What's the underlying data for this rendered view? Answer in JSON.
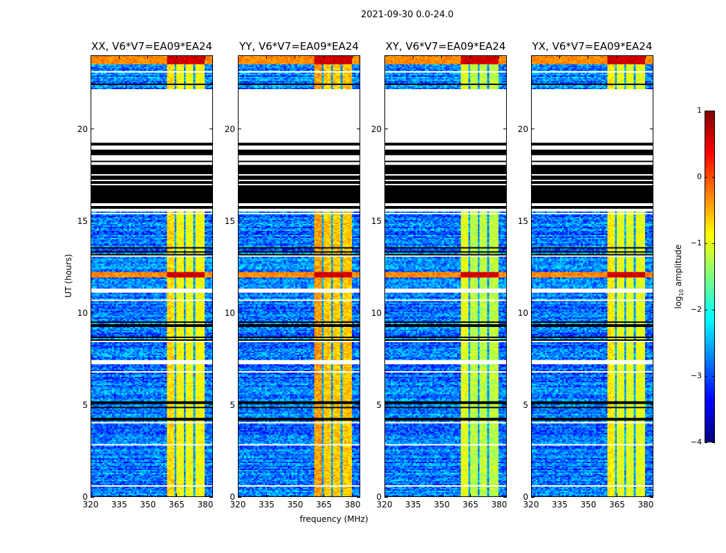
{
  "chart_data": {
    "type": "heatmap",
    "title": "2021-09-30 0.0-24.0",
    "xlabel": "frequency (MHz)",
    "ylabel": "UT (hours)",
    "xlim": [
      320,
      384
    ],
    "ylim": [
      0,
      24
    ],
    "xticks": [
      320,
      335,
      350,
      365,
      380
    ],
    "yticks": [
      0,
      5,
      10,
      15,
      20
    ],
    "panels": [
      {
        "title": "XX, V6*V7=EA09*EA24",
        "rfi_log_amp": -0.9
      },
      {
        "title": "YY, V6*V7=EA09*EA24",
        "rfi_log_amp": -0.6
      },
      {
        "title": "XY, V6*V7=EA09*EA24",
        "rfi_log_amp": -1.2
      },
      {
        "title": "YX, V6*V7=EA09*EA24",
        "rfi_log_amp": -1.0
      }
    ],
    "colorbar": {
      "label_prefix": "log",
      "label_sub": "10",
      "label_suffix": " amplitude",
      "range": [
        -4,
        1
      ],
      "ticks": [
        1,
        0,
        -1,
        -2,
        -3,
        -4
      ],
      "tick_labels": [
        "1",
        "0",
        "−1",
        "−2",
        "−3",
        "−4"
      ],
      "colormap": "jet"
    },
    "features": {
      "background_log_amp": -2.8,
      "no_data_hours": [
        [
          19.3,
          22.2
        ]
      ],
      "flagged_hours": [
        [
          15.5,
          19.3
        ]
      ],
      "blank_rows_hours": [
        [
          11.1,
          11.3
        ],
        [
          7.2,
          7.4
        ],
        [
          15.35,
          15.45
        ],
        [
          3.95,
          4.05
        ],
        [
          2.8,
          2.85
        ],
        [
          0.55,
          0.6
        ],
        [
          23.1,
          23.15
        ]
      ],
      "strong_rfi_hours": [
        [
          11.9,
          12.2
        ],
        [
          23.55,
          24.0
        ]
      ],
      "rfi_band_mhz": [
        360.5,
        380.0
      ],
      "rfi_notch_mhz": [
        364.8,
        369.6,
        374.9
      ]
    }
  }
}
